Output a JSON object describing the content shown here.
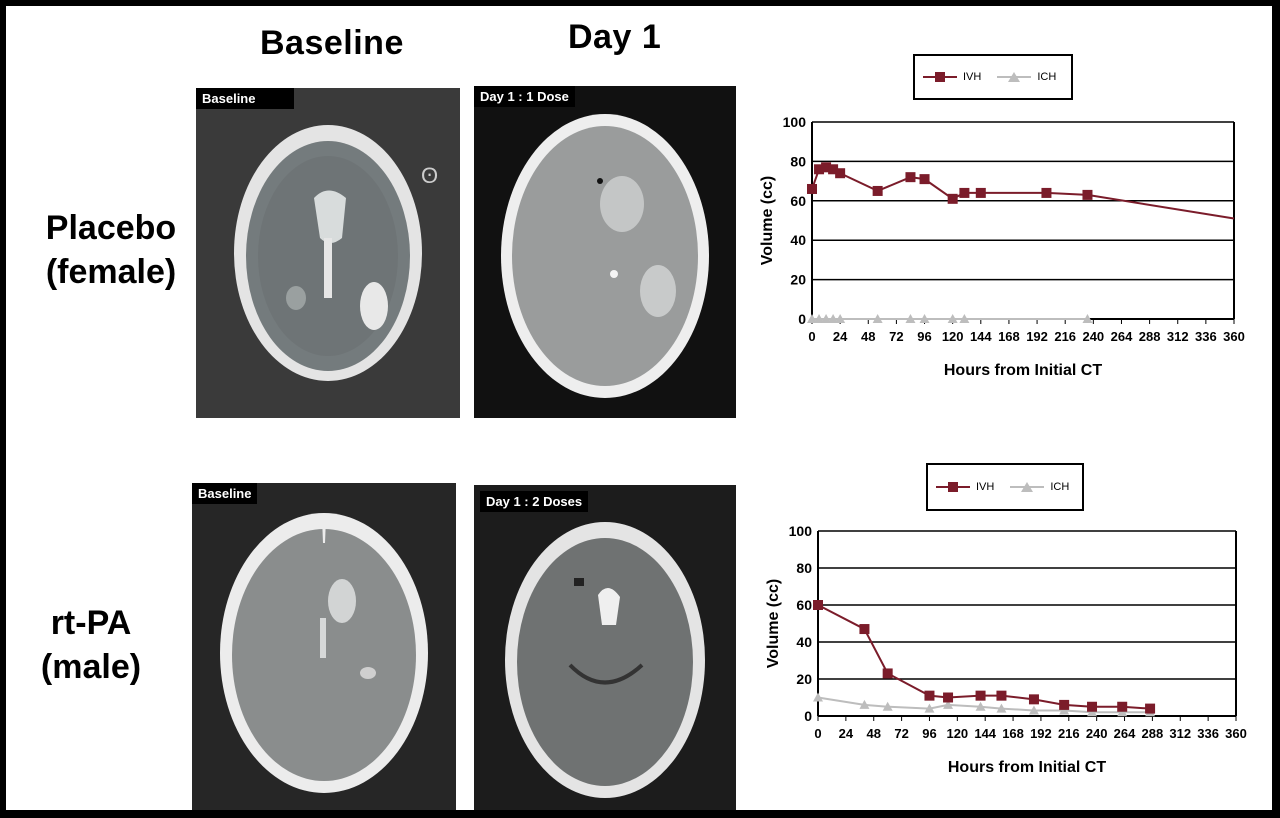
{
  "headers": {
    "baseline": "Baseline",
    "day1": "Day 1"
  },
  "rows": {
    "placebo": {
      "line1": "Placebo",
      "line2": "(female)"
    },
    "rtpa": {
      "line1": "rt-PA",
      "line2": "(male)"
    }
  },
  "scans": {
    "placebo_baseline": "Baseline",
    "placebo_day1": "Day 1 : 1 Dose",
    "rtpa_baseline": "Baseline",
    "rtpa_day1": "Day 1 : 2 Doses"
  },
  "colors": {
    "ivh": "#7b1c2a",
    "ich": "#bdbdbd"
  },
  "chart_data": [
    {
      "type": "line",
      "title": "",
      "xlabel": "Hours from Initial CT",
      "ylabel": "Volume (cc)",
      "xlim": [
        0,
        360
      ],
      "ylim": [
        0,
        100
      ],
      "xticks": [
        0,
        24,
        48,
        72,
        96,
        120,
        144,
        168,
        192,
        216,
        240,
        264,
        288,
        312,
        336,
        360
      ],
      "yticks": [
        0,
        20,
        40,
        60,
        80,
        100
      ],
      "grid": "horizontal",
      "legend": "top-center",
      "trend_end": [
        360,
        51
      ],
      "series": [
        {
          "name": "IVH",
          "x": [
            0,
            6,
            12,
            18,
            24,
            56,
            84,
            96,
            120,
            130,
            144,
            200,
            235
          ],
          "y": [
            66,
            76,
            77,
            76,
            74,
            65,
            72,
            71,
            61,
            64,
            64,
            64,
            63
          ]
        },
        {
          "name": "ICH",
          "x": [
            0,
            6,
            12,
            18,
            24,
            56,
            84,
            96,
            120,
            130,
            235
          ],
          "y": [
            0,
            0,
            0,
            0,
            0,
            0,
            0,
            0,
            0,
            0,
            0
          ]
        }
      ]
    },
    {
      "type": "line",
      "title": "",
      "xlabel": "Hours from Initial CT",
      "ylabel": "Volume (cc)",
      "xlim": [
        0,
        360
      ],
      "ylim": [
        0,
        100
      ],
      "xticks": [
        0,
        24,
        48,
        72,
        96,
        120,
        144,
        168,
        192,
        216,
        240,
        264,
        288,
        312,
        336,
        360
      ],
      "yticks": [
        0,
        20,
        40,
        60,
        80,
        100
      ],
      "grid": "horizontal",
      "legend": "top-center",
      "series": [
        {
          "name": "IVH",
          "x": [
            0,
            40,
            60,
            96,
            112,
            140,
            158,
            186,
            212,
            236,
            262,
            286
          ],
          "y": [
            60,
            47,
            23,
            11,
            10,
            11,
            11,
            9,
            6,
            5,
            5,
            4
          ]
        },
        {
          "name": "ICH",
          "x": [
            0,
            40,
            60,
            96,
            112,
            140,
            158,
            186,
            212,
            236,
            262,
            286
          ],
          "y": [
            10,
            6,
            5,
            4,
            6,
            5,
            4,
            3,
            3,
            2,
            2,
            2
          ]
        }
      ]
    }
  ]
}
